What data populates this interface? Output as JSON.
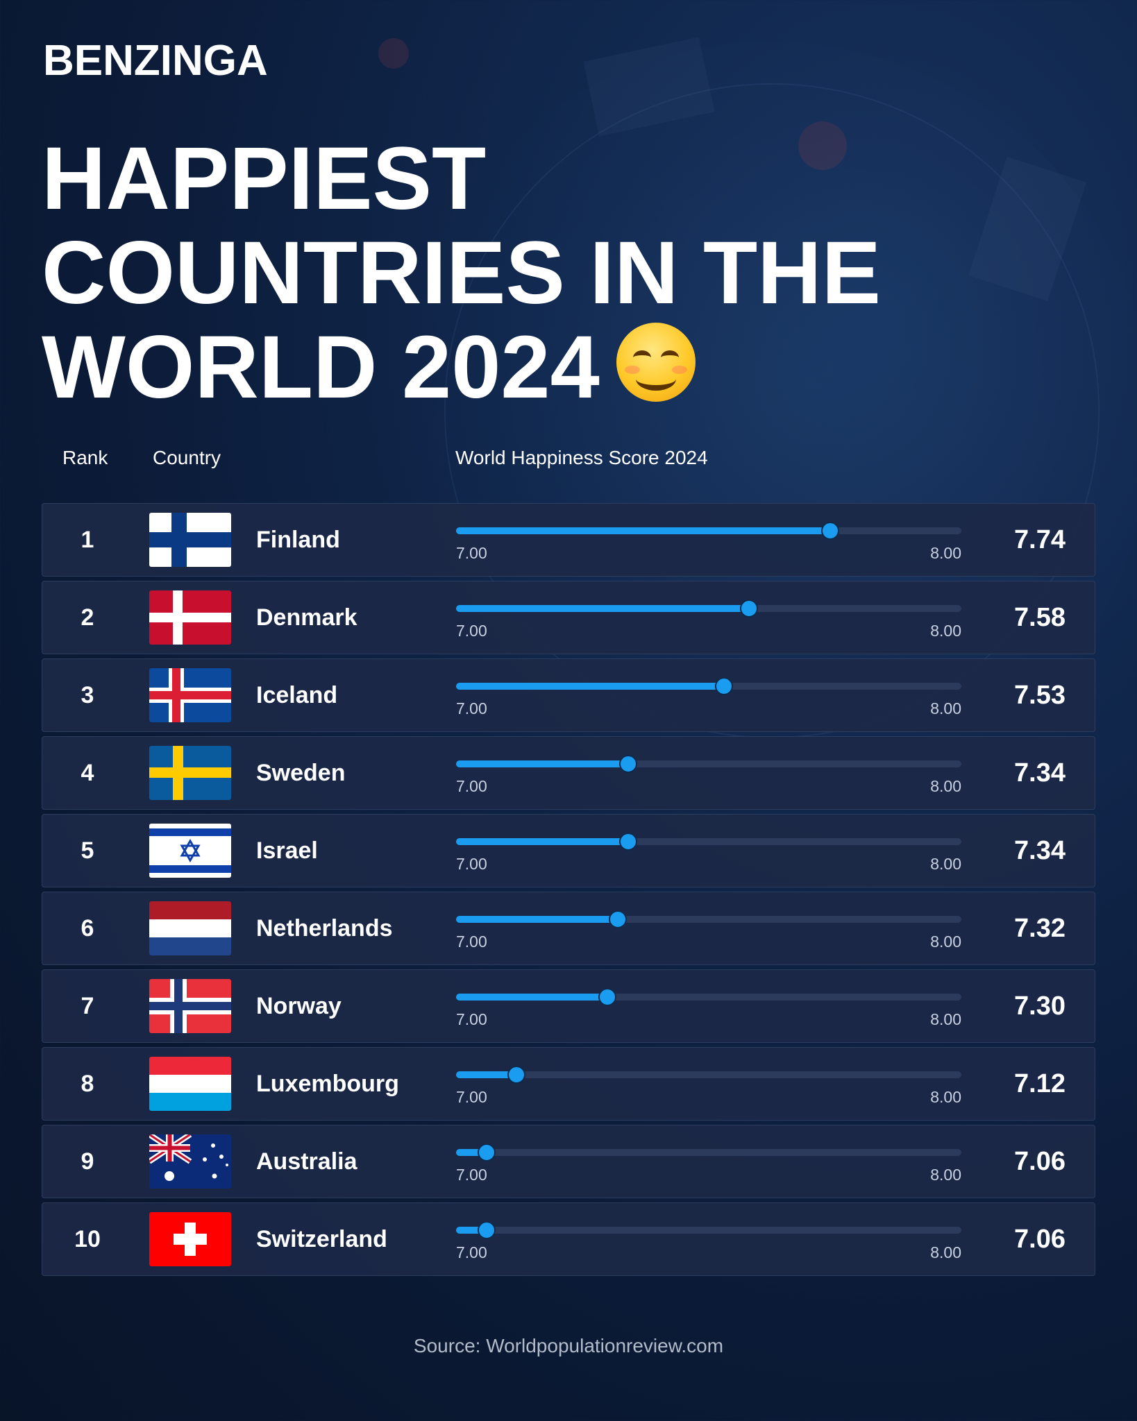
{
  "brand": "BENZINGA",
  "title": "HAPPIEST COUNTRIES IN THE WORLD 2024",
  "title_emoji": "smiling-face-icon",
  "headers": {
    "rank": "Rank",
    "country": "Country",
    "score": "World Happiness Score 2024"
  },
  "source": "Source: Worldpopulationreview.com",
  "colors": {
    "accent": "#1a9cf0",
    "track": "#2c3a5c",
    "row_bg": "#1c2846",
    "background": "#0b1a36"
  },
  "chart_data": {
    "type": "bar",
    "title": "World Happiness Score 2024",
    "xlim": [
      7.0,
      8.0
    ],
    "tick_min_label": "7.00",
    "tick_max_label": "8.00",
    "categories": [
      "Finland",
      "Denmark",
      "Iceland",
      "Sweden",
      "Israel",
      "Netherlands",
      "Norway",
      "Luxembourg",
      "Australia",
      "Switzerland"
    ],
    "values": [
      7.74,
      7.58,
      7.53,
      7.34,
      7.34,
      7.32,
      7.3,
      7.12,
      7.06,
      7.06
    ],
    "rows": [
      {
        "rank": "1",
        "country": "Finland",
        "flag": "finland-flag-icon",
        "score": 7.74,
        "score_label": "7.74"
      },
      {
        "rank": "2",
        "country": "Denmark",
        "flag": "denmark-flag-icon",
        "score": 7.58,
        "score_label": "7.58"
      },
      {
        "rank": "3",
        "country": "Iceland",
        "flag": "iceland-flag-icon",
        "score": 7.53,
        "score_label": "7.53"
      },
      {
        "rank": "4",
        "country": "Sweden",
        "flag": "sweden-flag-icon",
        "score": 7.34,
        "score_label": "7.34"
      },
      {
        "rank": "5",
        "country": "Israel",
        "flag": "israel-flag-icon",
        "score": 7.34,
        "score_label": "7.34"
      },
      {
        "rank": "6",
        "country": "Netherlands",
        "flag": "netherlands-flag-icon",
        "score": 7.32,
        "score_label": "7.32"
      },
      {
        "rank": "7",
        "country": "Norway",
        "flag": "norway-flag-icon",
        "score": 7.3,
        "score_label": "7.30"
      },
      {
        "rank": "8",
        "country": "Luxembourg",
        "flag": "luxembourg-flag-icon",
        "score": 7.12,
        "score_label": "7.12"
      },
      {
        "rank": "9",
        "country": "Australia",
        "flag": "australia-flag-icon",
        "score": 7.06,
        "score_label": "7.06"
      },
      {
        "rank": "10",
        "country": "Switzerland",
        "flag": "switzerland-flag-icon",
        "score": 7.06,
        "score_label": "7.06"
      }
    ]
  }
}
